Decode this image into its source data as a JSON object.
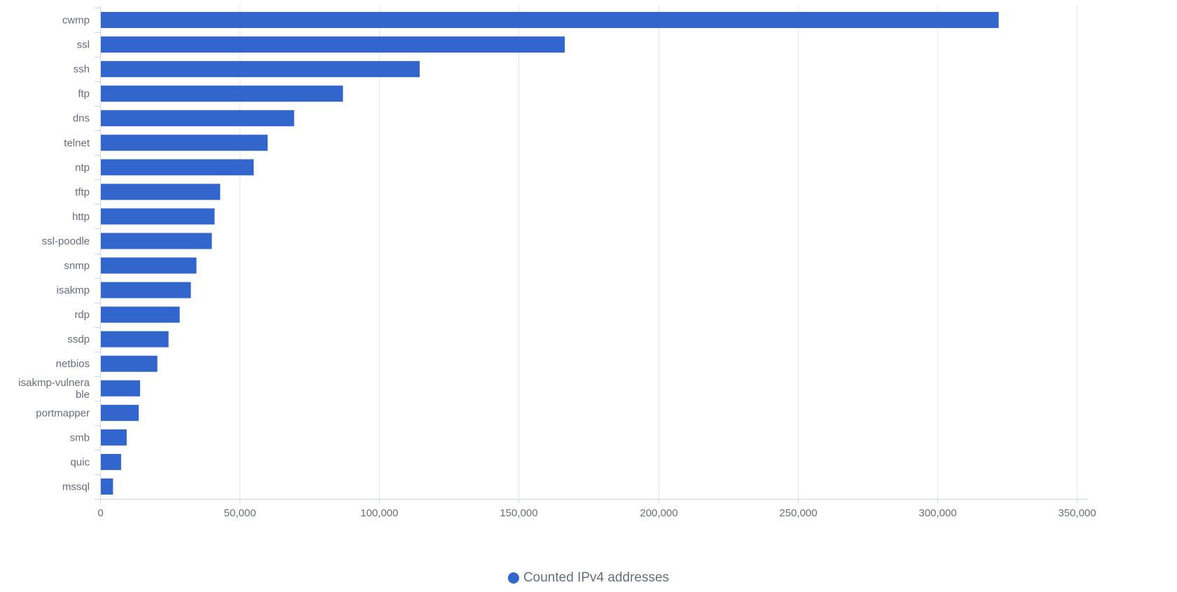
{
  "colors": {
    "bar": "#3366cc",
    "gridline": "#e6e6e6",
    "axis": "#ccd6eb",
    "text": "#666f80"
  },
  "legend": {
    "label": "Counted IPv4 addresses",
    "icon": "circle-marker-icon"
  },
  "chart_data": {
    "type": "bar",
    "orientation": "horizontal",
    "categories": [
      "cwmp",
      "ssl",
      "ssh",
      "ftp",
      "dns",
      "telnet",
      "ntp",
      "tftp",
      "http",
      "ssl-poodle",
      "snmp",
      "isakmp",
      "rdp",
      "ssdp",
      "netbios",
      "isakmp-vulnerable",
      "portmapper",
      "smb",
      "quic",
      "mssql"
    ],
    "category_display": [
      [
        "cwmp"
      ],
      [
        "ssl"
      ],
      [
        "ssh"
      ],
      [
        "ftp"
      ],
      [
        "dns"
      ],
      [
        "telnet"
      ],
      [
        "ntp"
      ],
      [
        "tftp"
      ],
      [
        "http"
      ],
      [
        "ssl-poodle"
      ],
      [
        "snmp"
      ],
      [
        "isakmp"
      ],
      [
        "rdp"
      ],
      [
        "ssdp"
      ],
      [
        "netbios"
      ],
      [
        "isakmp-vulnera",
        "ble"
      ],
      [
        "portmapper"
      ],
      [
        "smb"
      ],
      [
        "quic"
      ],
      [
        "mssql"
      ]
    ],
    "series": [
      {
        "name": "Counted IPv4 addresses",
        "values": [
          322000,
          166500,
          114500,
          87000,
          69500,
          60000,
          55000,
          43000,
          41000,
          40000,
          34500,
          32500,
          28500,
          24500,
          20500,
          14300,
          13800,
          9500,
          7500,
          4600
        ]
      }
    ],
    "xlim": [
      0,
      350000
    ],
    "x_ticks": [
      0,
      50000,
      100000,
      150000,
      200000,
      250000,
      300000,
      350000
    ],
    "x_tick_labels": [
      "0",
      "50,000",
      "100,000",
      "150,000",
      "200,000",
      "250,000",
      "300,000",
      "350,000"
    ],
    "grid": true,
    "legend_position": "bottom-center",
    "title": "",
    "xlabel": "",
    "ylabel": ""
  }
}
